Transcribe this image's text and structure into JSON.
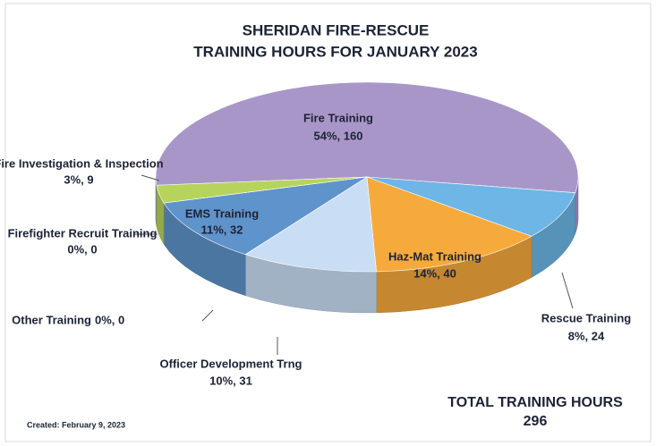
{
  "chart_data": {
    "type": "pie",
    "title": [
      "SHERIDAN FIRE-RESCUE",
      "TRAINING HOURS FOR JANUARY 2023"
    ],
    "categories": [
      "Fire Training",
      "Rescue Training",
      "Haz-Mat Training",
      "Officer Development Trng",
      "Other Training",
      "EMS Training",
      "Firefighter Recruit Training",
      "Fire Investigation & Inspection"
    ],
    "values": [
      160,
      24,
      40,
      31,
      0,
      32,
      0,
      9
    ],
    "value_labels": [
      "54%, 160",
      "8%, 24",
      "14%, 40",
      "10%, 31",
      "0%, 0",
      "11%, 32",
      "0%, 0",
      "3%, 9"
    ],
    "colors": [
      "#a996c9",
      "#6db6e6",
      "#f6aa3c",
      "#c9def5",
      "#a8c8e8",
      "#5f93cb",
      "#5079b0",
      "#b6d45c"
    ],
    "total": {
      "label": "TOTAL TRAINING  HOURS",
      "value": 296
    },
    "note": "Created:  February 9, 2023"
  }
}
